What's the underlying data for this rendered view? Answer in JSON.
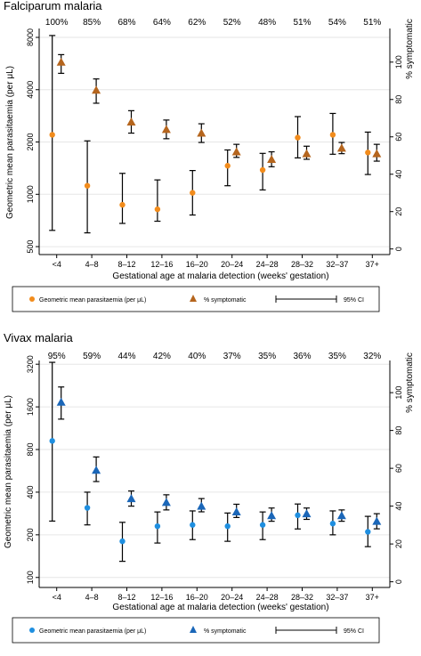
{
  "chart_data": [
    {
      "type": "scatter",
      "title": "Falciparum malaria",
      "xlabel": "Gestational age at malaria detection (weeks' gestation)",
      "ylabel_left": "Geometric mean parasitaemia  (per μL)",
      "ylabel_right": "% symptomatic",
      "categories": [
        "<4",
        "4–8",
        "8–12",
        "12–16",
        "16–20",
        "20–24",
        "24–28",
        "28–32",
        "32–37",
        "37+"
      ],
      "pct_labels": [
        "100%",
        "85%",
        "68%",
        "64%",
        "62%",
        "52%",
        "48%",
        "51%",
        "54%",
        "51%"
      ],
      "left_axis": {
        "scale": "log",
        "ticks": [
          500,
          1000,
          2000,
          4000,
          8000
        ],
        "range": [
          450,
          9000
        ]
      },
      "right_axis": {
        "ticks": [
          0,
          20,
          40,
          60,
          80,
          100
        ],
        "range": [
          -3,
          118
        ]
      },
      "series": [
        {
          "name": "Geometric mean parasitaemia  (per μL)",
          "axis": "left",
          "marker": "circle",
          "color": "#f28c1c",
          "values": [
            2200,
            1120,
            870,
            820,
            1020,
            1460,
            1380,
            2120,
            2200,
            1740
          ],
          "ci_low": [
            620,
            600,
            680,
            700,
            760,
            1120,
            1060,
            1620,
            1700,
            1300
          ],
          "ci_high": [
            8200,
            2030,
            1320,
            1210,
            1370,
            1800,
            1720,
            2800,
            2920,
            2280
          ]
        },
        {
          "name": "% symptomatic",
          "axis": "right",
          "marker": "triangle",
          "color": "#b5651d",
          "values": [
            100,
            85,
            68,
            64,
            62,
            52,
            48,
            51,
            54,
            51
          ],
          "ci_low": [
            94,
            78,
            62,
            59,
            57,
            49,
            44,
            48,
            51,
            47
          ],
          "ci_high": [
            104,
            91,
            74,
            69,
            67,
            56,
            52,
            55,
            57,
            56
          ]
        }
      ],
      "legend": {
        "items": [
          "Geometric mean parasitaemia  (per μL)",
          "% symptomatic",
          "95% CI"
        ],
        "placement": "bottom"
      }
    },
    {
      "type": "scatter",
      "title": "Vivax malaria",
      "xlabel": "Gestational age at malaria detection (weeks' gestation)",
      "ylabel_left": "Geometric mean parasitaemia  (per μL)",
      "ylabel_right": "% symptomatic",
      "categories": [
        "<4",
        "4–8",
        "8–12",
        "12–16",
        "16–20",
        "20–24",
        "24–28",
        "28–32",
        "32–37",
        "37+"
      ],
      "pct_labels": [
        "95%",
        "59%",
        "44%",
        "42%",
        "40%",
        "37%",
        "35%",
        "36%",
        "35%",
        "32%"
      ],
      "left_axis": {
        "scale": "log",
        "ticks": [
          100,
          200,
          400,
          800,
          1600,
          3200
        ],
        "range": [
          85,
          3400
        ]
      },
      "right_axis": {
        "ticks": [
          0,
          20,
          40,
          60,
          80,
          100
        ],
        "range": [
          -3,
          117
        ]
      },
      "series": [
        {
          "name": "Geometric mean parasitaemia  (per μL)",
          "axis": "left",
          "marker": "circle",
          "color": "#1f8fe0",
          "values": [
            920,
            310,
            180,
            230,
            235,
            230,
            235,
            275,
            240,
            210
          ],
          "ci_low": [
            250,
            235,
            130,
            175,
            185,
            180,
            185,
            220,
            200,
            165
          ],
          "ci_high": [
            3300,
            400,
            245,
            290,
            295,
            285,
            290,
            330,
            295,
            270
          ]
        },
        {
          "name": "% symptomatic",
          "axis": "right",
          "marker": "triangle",
          "color": "#1a66b8",
          "values": [
            95,
            59,
            44,
            42,
            40,
            37,
            35,
            36,
            35,
            32
          ],
          "ci_low": [
            86,
            53,
            40,
            38,
            37,
            34,
            32,
            33,
            32,
            28
          ],
          "ci_high": [
            103,
            66,
            48,
            46,
            44,
            41,
            39,
            39,
            38,
            36
          ]
        }
      ],
      "legend": {
        "items": [
          "Geometric mean parasitaemia  (per μL)",
          "% symptomatic",
          "95% CI"
        ],
        "placement": "bottom"
      }
    }
  ]
}
